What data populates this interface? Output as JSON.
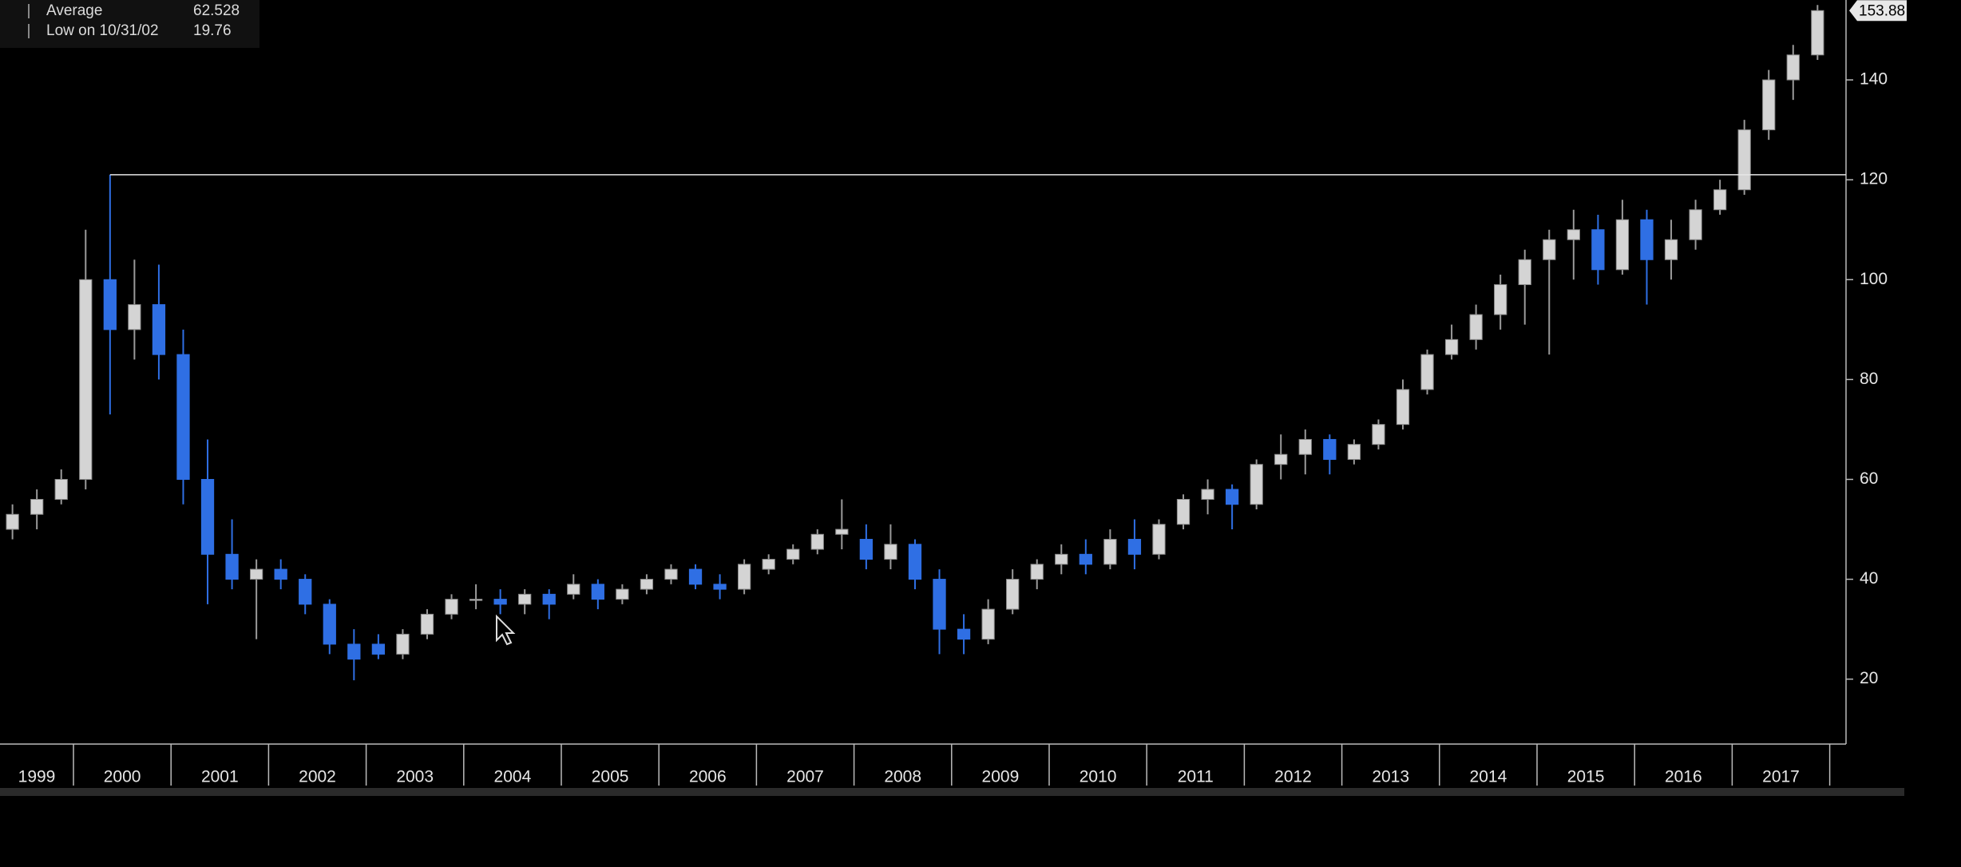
{
  "chart_data": {
    "type": "candlestick",
    "legend": [
      {
        "label": "Average",
        "value": 62.528
      },
      {
        "label": "Low on 10/31/02",
        "value": 19.76
      }
    ],
    "years": [
      "1999",
      "2000",
      "2001",
      "2002",
      "2003",
      "2004",
      "2005",
      "2006",
      "2007",
      "2008",
      "2009",
      "2010",
      "2011",
      "2012",
      "2013",
      "2014",
      "2015",
      "2016",
      "2017"
    ],
    "open": [
      50,
      53,
      56,
      60,
      100,
      90,
      95,
      85,
      60,
      45,
      40,
      42,
      40,
      35,
      27,
      27,
      25,
      29,
      33,
      36,
      36,
      35,
      37,
      37,
      39,
      36,
      38,
      40,
      42,
      39,
      38,
      42,
      44,
      46,
      49,
      48,
      44,
      47,
      40,
      30,
      28,
      34,
      40,
      43,
      45,
      43,
      48,
      45,
      51,
      56,
      58,
      55,
      63,
      65,
      68,
      64,
      67,
      71,
      78,
      85,
      88,
      93,
      99,
      104,
      108,
      110,
      102,
      112,
      104,
      108,
      114,
      118,
      130,
      140,
      145
    ],
    "high": [
      55,
      58,
      62,
      110,
      121,
      104,
      103,
      90,
      68,
      52,
      44,
      44,
      41,
      36,
      30,
      29,
      30,
      34,
      37,
      39,
      38,
      38,
      38,
      41,
      40,
      39,
      41,
      43,
      43,
      41,
      44,
      45,
      47,
      50,
      56,
      51,
      51,
      48,
      42,
      33,
      36,
      42,
      44,
      47,
      48,
      50,
      52,
      52,
      57,
      60,
      59,
      64,
      69,
      70,
      69,
      68,
      72,
      80,
      86,
      91,
      95,
      101,
      106,
      110,
      114,
      113,
      116,
      114,
      112,
      116,
      120,
      132,
      142,
      147,
      155
    ],
    "low": [
      48,
      50,
      55,
      58,
      73,
      84,
      80,
      55,
      35,
      38,
      28,
      38,
      33,
      25,
      19.76,
      24,
      24,
      28,
      32,
      34,
      33,
      33,
      32,
      36,
      34,
      35,
      37,
      39,
      38,
      36,
      37,
      41,
      43,
      45,
      46,
      42,
      42,
      38,
      25,
      25,
      27,
      33,
      38,
      41,
      41,
      42,
      42,
      44,
      50,
      53,
      50,
      54,
      60,
      61,
      61,
      63,
      66,
      70,
      77,
      84,
      86,
      90,
      91,
      85,
      100,
      99,
      101,
      95,
      100,
      106,
      113,
      117,
      128,
      136,
      144
    ],
    "close": [
      53,
      56,
      60,
      100,
      90,
      95,
      85,
      60,
      45,
      40,
      42,
      40,
      35,
      27,
      24,
      25,
      29,
      33,
      36,
      36,
      35,
      37,
      35,
      39,
      36,
      38,
      40,
      42,
      39,
      38,
      43,
      44,
      46,
      49,
      50,
      44,
      47,
      40,
      30,
      28,
      34,
      40,
      43,
      45,
      43,
      48,
      45,
      51,
      56,
      58,
      55,
      63,
      65,
      68,
      64,
      67,
      71,
      78,
      85,
      88,
      93,
      99,
      104,
      108,
      110,
      102,
      112,
      104,
      108,
      114,
      118,
      130,
      140,
      145,
      153.88
    ],
    "up_color": "#d4d4d4",
    "down_color": "#2f6fe4",
    "ylim": [
      7,
      156
    ],
    "yticks": [
      20,
      40,
      60,
      80,
      100,
      120,
      140
    ]
  }
}
